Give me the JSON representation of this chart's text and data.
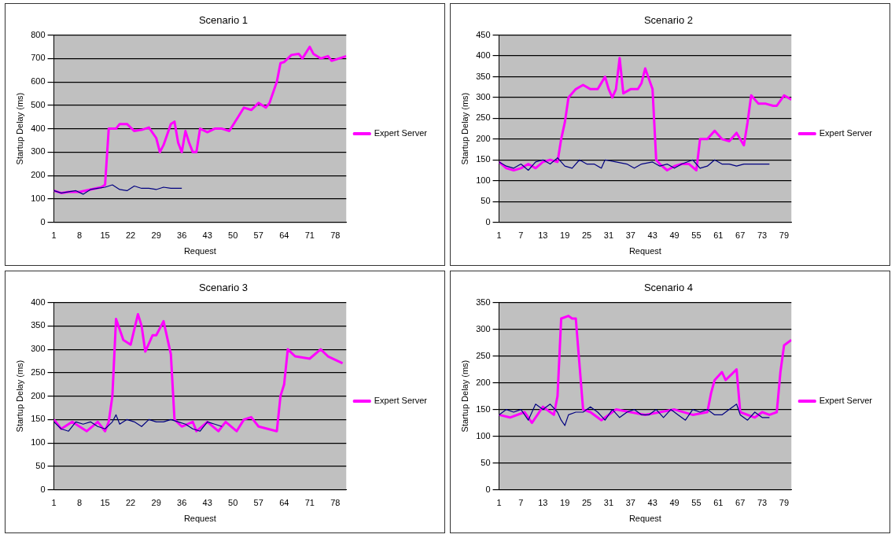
{
  "chart_data": [
    {
      "type": "line",
      "title": "Scenario 1",
      "xlabel": "Request",
      "ylabel": "Startup Delay (ms)",
      "xlim": [
        1,
        81
      ],
      "xticks": [
        1,
        8,
        15,
        22,
        29,
        36,
        43,
        50,
        57,
        64,
        71,
        78
      ],
      "ylim": [
        0,
        800
      ],
      "yticks": [
        0,
        100,
        200,
        300,
        400,
        500,
        600,
        700,
        800
      ],
      "grid": "y",
      "legend": "right",
      "marker": "none",
      "line_style": "solid",
      "series": [
        {
          "color": "#000080",
          "x": [
            1,
            3,
            5,
            7,
            9,
            11,
            13,
            15,
            17,
            19,
            21,
            23,
            25,
            27,
            29,
            31,
            33,
            36
          ],
          "values": [
            135,
            125,
            130,
            135,
            120,
            140,
            145,
            150,
            160,
            140,
            135,
            155,
            145,
            145,
            140,
            150,
            145,
            145
          ]
        },
        {
          "name": "Expert Server",
          "color": "#ff00ff",
          "x": [
            1,
            3,
            5,
            8,
            11,
            14,
            15,
            16,
            18,
            19,
            21,
            23,
            25,
            27,
            29,
            30,
            31,
            33,
            34,
            35,
            36,
            37,
            38,
            39,
            40,
            41,
            43,
            45,
            47,
            49,
            51,
            53,
            55,
            57,
            59,
            60,
            62,
            63,
            64,
            66,
            68,
            69,
            71,
            72,
            74,
            76,
            77,
            79,
            81
          ],
          "values": [
            135,
            125,
            130,
            130,
            140,
            150,
            160,
            400,
            400,
            420,
            420,
            390,
            395,
            405,
            360,
            300,
            330,
            420,
            430,
            340,
            300,
            390,
            340,
            300,
            300,
            400,
            385,
            400,
            400,
            390,
            440,
            490,
            480,
            510,
            490,
            510,
            600,
            680,
            685,
            715,
            720,
            700,
            750,
            720,
            700,
            710,
            690,
            700,
            710
          ]
        }
      ]
    },
    {
      "type": "line",
      "title": "Scenario 2",
      "xlabel": "Request",
      "ylabel": "Startup Delay (ms)",
      "xlim": [
        1,
        81
      ],
      "xticks": [
        1,
        7,
        13,
        19,
        25,
        31,
        37,
        43,
        49,
        55,
        61,
        67,
        73,
        79
      ],
      "ylim": [
        0,
        450
      ],
      "yticks": [
        0,
        50,
        100,
        150,
        200,
        250,
        300,
        350,
        400,
        450
      ],
      "grid": "y",
      "legend": "right",
      "marker": "none",
      "line_style": "solid",
      "series": [
        {
          "color": "#000080",
          "x": [
            1,
            3,
            5,
            7,
            9,
            11,
            13,
            15,
            17,
            19,
            21,
            23,
            25,
            27,
            29,
            30,
            33,
            36,
            38,
            40,
            43,
            45,
            47,
            49,
            51,
            54,
            56,
            58,
            60,
            62,
            64,
            66,
            68,
            70,
            72,
            75
          ],
          "values": [
            145,
            135,
            130,
            140,
            125,
            145,
            150,
            140,
            155,
            135,
            130,
            150,
            140,
            140,
            130,
            150,
            145,
            140,
            130,
            140,
            145,
            135,
            140,
            130,
            140,
            150,
            130,
            135,
            150,
            140,
            140,
            135,
            140,
            140,
            140,
            140
          ]
        },
        {
          "name": "Expert Server",
          "color": "#ff00ff",
          "x": [
            1,
            3,
            5,
            7,
            9,
            11,
            13,
            15,
            17,
            18,
            19,
            20,
            22,
            24,
            26,
            28,
            30,
            31,
            32,
            33,
            34,
            35,
            37,
            39,
            40,
            41,
            42,
            43,
            44,
            45,
            47,
            49,
            51,
            53,
            55,
            56,
            58,
            60,
            62,
            64,
            66,
            68,
            69,
            70,
            72,
            74,
            76,
            77,
            79,
            81
          ],
          "values": [
            145,
            130,
            125,
            130,
            140,
            130,
            145,
            150,
            145,
            200,
            240,
            300,
            320,
            330,
            320,
            320,
            350,
            320,
            300,
            320,
            395,
            310,
            320,
            320,
            335,
            370,
            345,
            320,
            150,
            140,
            125,
            135,
            140,
            140,
            125,
            200,
            200,
            220,
            200,
            195,
            215,
            185,
            240,
            305,
            285,
            285,
            280,
            280,
            305,
            295
          ]
        }
      ]
    },
    {
      "type": "line",
      "title": "Scenario 3",
      "xlabel": "Request",
      "ylabel": "Startup Delay (ms)",
      "xlim": [
        1,
        81
      ],
      "xticks": [
        1,
        8,
        15,
        22,
        29,
        36,
        43,
        50,
        57,
        64,
        71,
        78
      ],
      "ylim": [
        0,
        400
      ],
      "yticks": [
        0,
        50,
        100,
        150,
        200,
        250,
        300,
        350,
        400
      ],
      "grid": "y",
      "legend": "right",
      "marker": "none",
      "line_style": "solid",
      "series": [
        {
          "color": "#000080",
          "x": [
            1,
            3,
            5,
            7,
            9,
            11,
            13,
            15,
            17,
            18,
            19,
            21,
            23,
            25,
            27,
            29,
            31,
            33,
            35,
            37,
            39,
            41,
            43,
            45,
            47
          ],
          "values": [
            145,
            130,
            125,
            145,
            140,
            145,
            135,
            130,
            145,
            160,
            140,
            150,
            145,
            135,
            150,
            145,
            145,
            150,
            145,
            140,
            130,
            125,
            145,
            140,
            135
          ]
        },
        {
          "name": "Expert Server",
          "color": "#ff00ff",
          "x": [
            1,
            3,
            6,
            10,
            13,
            15,
            16,
            17,
            18,
            20,
            22,
            24,
            25,
            26,
            28,
            29,
            31,
            33,
            34,
            36,
            39,
            40,
            43,
            46,
            48,
            51,
            53,
            55,
            57,
            62,
            63,
            64,
            65,
            67,
            71,
            74,
            76,
            80
          ],
          "values": [
            150,
            130,
            145,
            125,
            145,
            125,
            145,
            200,
            365,
            320,
            310,
            375,
            350,
            295,
            330,
            330,
            360,
            290,
            150,
            135,
            145,
            125,
            145,
            125,
            145,
            125,
            150,
            155,
            135,
            125,
            200,
            225,
            300,
            285,
            280,
            300,
            285,
            270
          ]
        }
      ]
    },
    {
      "type": "line",
      "title": "Scenario 4",
      "xlabel": "Request",
      "ylabel": "Startup Delay (ms)",
      "xlim": [
        1,
        81
      ],
      "xticks": [
        1,
        7,
        13,
        19,
        25,
        31,
        37,
        43,
        49,
        55,
        61,
        67,
        73,
        79
      ],
      "ylim": [
        0,
        350
      ],
      "yticks": [
        0,
        50,
        100,
        150,
        200,
        250,
        300,
        350
      ],
      "grid": "y",
      "legend": "right",
      "marker": "none",
      "line_style": "solid",
      "series": [
        {
          "color": "#000080",
          "x": [
            1,
            3,
            5,
            7,
            9,
            11,
            13,
            15,
            17,
            18,
            19,
            20,
            22,
            24,
            26,
            28,
            30,
            32,
            34,
            36,
            38,
            40,
            42,
            44,
            46,
            48,
            50,
            52,
            54,
            56,
            58,
            60,
            62,
            64,
            66,
            67,
            69,
            71,
            73,
            75
          ],
          "values": [
            140,
            150,
            145,
            150,
            130,
            160,
            150,
            160,
            145,
            130,
            120,
            140,
            145,
            145,
            155,
            145,
            130,
            150,
            135,
            145,
            150,
            140,
            140,
            150,
            135,
            150,
            140,
            130,
            150,
            145,
            150,
            140,
            140,
            150,
            160,
            140,
            130,
            145,
            135,
            135
          ]
        },
        {
          "name": "Expert Server",
          "color": "#ff00ff",
          "x": [
            1,
            4,
            8,
            10,
            13,
            16,
            17,
            18,
            20,
            21,
            22,
            24,
            26,
            29,
            33,
            37,
            41,
            45,
            49,
            54,
            58,
            59,
            60,
            62,
            63,
            66,
            67,
            71,
            73,
            75,
            77,
            78,
            79,
            81
          ],
          "values": [
            140,
            135,
            145,
            125,
            155,
            140,
            175,
            320,
            325,
            320,
            320,
            150,
            145,
            130,
            150,
            145,
            140,
            145,
            150,
            140,
            145,
            180,
            205,
            220,
            205,
            225,
            145,
            135,
            145,
            140,
            145,
            220,
            270,
            280
          ]
        }
      ]
    }
  ]
}
